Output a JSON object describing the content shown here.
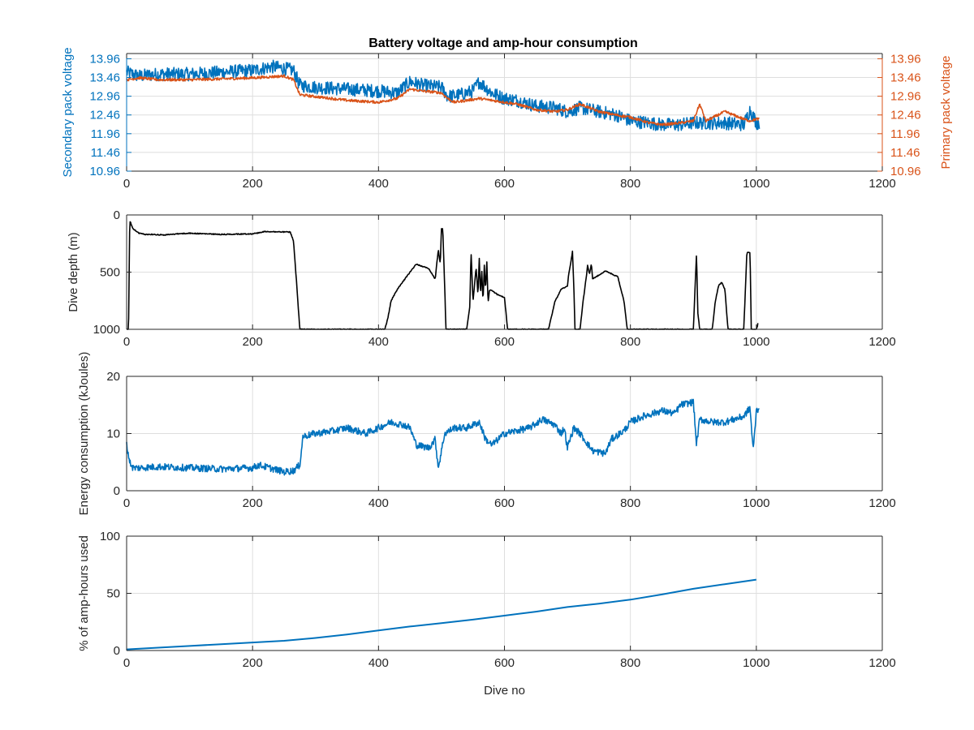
{
  "figure": {
    "title": "Battery voltage and amp-hour consumption",
    "colors": {
      "blue": "#0072BD",
      "orange": "#D95319",
      "black": "#000000",
      "grid": "#DEDEDE",
      "axis": "#262626"
    }
  },
  "chart_data": [
    {
      "type": "line",
      "title": "Battery voltage and amp-hour consumption",
      "xlabel": "",
      "ylabel_left": "Secondary pack voltage",
      "ylabel_right": "Primary pack voltage",
      "xlim": [
        0,
        1200
      ],
      "ylim": [
        10.96,
        14.1
      ],
      "xticks": [
        0,
        200,
        400,
        600,
        800,
        1000,
        1200
      ],
      "yticks": [
        10.96,
        11.46,
        11.96,
        12.46,
        12.96,
        13.46,
        13.96
      ],
      "ytick_labels": [
        "10.96",
        "11.46",
        "11.96",
        "12.46",
        "12.96",
        "13.46",
        "13.96"
      ],
      "grid": true,
      "series": [
        {
          "axis": "left",
          "color": "#0072BD",
          "noise": 0.18,
          "x": [
            0,
            20,
            50,
            100,
            150,
            200,
            230,
            250,
            265,
            275,
            300,
            350,
            400,
            430,
            450,
            470,
            500,
            510,
            530,
            550,
            560,
            580,
            600,
            620,
            650,
            680,
            700,
            720,
            750,
            780,
            800,
            830,
            850,
            880,
            900,
            950,
            980,
            990,
            1000,
            1005
          ],
          "y": [
            13.6,
            13.5,
            13.55,
            13.55,
            13.6,
            13.65,
            13.75,
            13.7,
            13.65,
            13.25,
            13.2,
            13.15,
            13.1,
            13.05,
            13.35,
            13.25,
            13.2,
            12.95,
            13.0,
            13.1,
            13.35,
            13.05,
            12.9,
            12.85,
            12.7,
            12.65,
            12.55,
            12.65,
            12.55,
            12.45,
            12.3,
            12.25,
            12.2,
            12.2,
            12.25,
            12.25,
            12.2,
            12.6,
            12.25,
            12.25
          ]
        },
        {
          "axis": "right",
          "color": "#D95319",
          "noise": 0.035,
          "x": [
            0,
            20,
            50,
            100,
            150,
            200,
            250,
            265,
            275,
            300,
            350,
            400,
            430,
            450,
            470,
            500,
            510,
            520,
            540,
            560,
            580,
            600,
            620,
            650,
            680,
            700,
            720,
            750,
            780,
            800,
            830,
            850,
            880,
            900,
            910,
            920,
            950,
            980,
            990,
            1000,
            1005
          ],
          "y": [
            13.4,
            13.45,
            13.4,
            13.4,
            13.42,
            13.45,
            13.5,
            13.4,
            13.0,
            12.95,
            12.85,
            12.8,
            12.9,
            13.15,
            13.1,
            13.05,
            12.9,
            12.8,
            12.85,
            12.9,
            12.85,
            12.8,
            12.75,
            12.6,
            12.55,
            12.6,
            12.75,
            12.55,
            12.45,
            12.4,
            12.25,
            12.2,
            12.25,
            12.3,
            12.75,
            12.3,
            12.55,
            12.35,
            12.3,
            12.35,
            12.35
          ]
        }
      ]
    },
    {
      "type": "line",
      "title": "",
      "xlabel": "",
      "ylabel": "Dive depth (m)",
      "xlim": [
        0,
        1200
      ],
      "ylim": [
        0,
        1000
      ],
      "y_reversed": true,
      "xticks": [
        0,
        200,
        400,
        600,
        800,
        1000,
        1200
      ],
      "yticks": [
        0,
        500,
        1000
      ],
      "ytick_labels": [
        "0",
        "500",
        "1000"
      ],
      "grid": true,
      "series": [
        {
          "color": "#000000",
          "noise": 4,
          "x": [
            0,
            3,
            5,
            10,
            20,
            30,
            40,
            60,
            80,
            100,
            150,
            200,
            220,
            260,
            265,
            270,
            275,
            278,
            280,
            300,
            400,
            410,
            415,
            420,
            430,
            450,
            460,
            480,
            490,
            495,
            498,
            500,
            502,
            505,
            507,
            510,
            520,
            540,
            545,
            547,
            550,
            555,
            558,
            560,
            562,
            564,
            566,
            568,
            570,
            572,
            574,
            576,
            580,
            590,
            600,
            605,
            610,
            650,
            670,
            680,
            690,
            700,
            702,
            705,
            708,
            710,
            712,
            720,
            725,
            730,
            732,
            735,
            738,
            740,
            760,
            780,
            790,
            795,
            800,
            820,
            850,
            900,
            905,
            907,
            910,
            912,
            915,
            930,
            935,
            940,
            945,
            950,
            955,
            960,
            980,
            985,
            988,
            990,
            992,
            995,
            998,
            1000,
            1002,
            1003
          ],
          "y": [
            1000,
            1000,
            50,
            120,
            160,
            170,
            170,
            175,
            165,
            160,
            170,
            165,
            145,
            150,
            230,
            600,
            1000,
            1000,
            1000,
            1000,
            1000,
            1000,
            900,
            750,
            650,
            500,
            430,
            470,
            560,
            300,
            430,
            120,
            120,
            600,
            1000,
            1000,
            1000,
            1000,
            800,
            320,
            760,
            460,
            700,
            380,
            700,
            490,
            760,
            440,
            660,
            410,
            770,
            660,
            660,
            700,
            720,
            1000,
            1000,
            1000,
            1000,
            760,
            650,
            620,
            520,
            430,
            320,
            600,
            1000,
            1000,
            750,
            540,
            440,
            520,
            430,
            560,
            490,
            540,
            760,
            1000,
            1000,
            1000,
            1000,
            1000,
            330,
            850,
            1000,
            1000,
            1000,
            1000,
            750,
            620,
            590,
            650,
            1000,
            1000,
            1000,
            330,
            330,
            330,
            1000,
            1000,
            1000,
            1000,
            970,
            920
          ]
        }
      ]
    },
    {
      "type": "line",
      "title": "",
      "xlabel": "",
      "ylabel": "Energy consumption (kJoules)",
      "xlim": [
        0,
        1200
      ],
      "ylim": [
        0,
        20
      ],
      "xticks": [
        0,
        200,
        400,
        600,
        800,
        1000,
        1200
      ],
      "yticks": [
        0,
        10,
        20
      ],
      "ytick_labels": [
        "0",
        "10",
        "20"
      ],
      "grid": true,
      "series": [
        {
          "color": "#0072BD",
          "noise": 0.6,
          "x": [
            0,
            5,
            10,
            20,
            50,
            100,
            150,
            200,
            210,
            250,
            265,
            275,
            280,
            300,
            330,
            350,
            380,
            400,
            420,
            440,
            450,
            460,
            480,
            490,
            495,
            500,
            505,
            520,
            540,
            560,
            570,
            580,
            600,
            620,
            640,
            660,
            680,
            690,
            695,
            700,
            710,
            720,
            740,
            760,
            770,
            790,
            800,
            820,
            850,
            870,
            880,
            900,
            905,
            910,
            930,
            950,
            980,
            990,
            995,
            1000,
            1005
          ],
          "y": [
            8,
            5,
            4,
            4,
            4.2,
            4,
            3.8,
            4,
            4.5,
            3.3,
            3.5,
            4.5,
            9.5,
            10,
            10.5,
            11,
            10,
            11,
            12,
            11.5,
            11,
            8,
            7.5,
            9,
            4,
            7,
            10,
            11,
            11,
            12,
            9,
            8,
            10,
            10.5,
            11,
            12.5,
            11.5,
            10,
            11,
            7.5,
            11,
            10,
            7,
            6.5,
            9,
            10.5,
            12,
            13,
            14,
            13.5,
            15,
            15.5,
            8,
            12.5,
            12,
            12,
            13,
            14.5,
            7,
            14,
            14.5
          ]
        }
      ]
    },
    {
      "type": "line",
      "title": "",
      "xlabel": "Dive no",
      "ylabel": "% of amp-hours used",
      "xlim": [
        0,
        1200
      ],
      "ylim": [
        0,
        100
      ],
      "xticks": [
        0,
        200,
        400,
        600,
        800,
        1000,
        1200
      ],
      "yticks": [
        0,
        50,
        100
      ],
      "ytick_labels": [
        "0",
        "50",
        "100"
      ],
      "grid": true,
      "series": [
        {
          "color": "#0072BD",
          "noise": 0,
          "x": [
            0,
            50,
            100,
            150,
            200,
            250,
            300,
            350,
            400,
            450,
            500,
            550,
            600,
            650,
            700,
            750,
            800,
            850,
            900,
            950,
            1000
          ],
          "y": [
            1,
            2.5,
            4,
            5.5,
            7,
            8.5,
            11,
            14,
            17.5,
            21,
            24,
            27,
            30.5,
            34,
            38,
            41,
            44.5,
            49,
            54,
            58,
            62
          ]
        }
      ]
    }
  ]
}
